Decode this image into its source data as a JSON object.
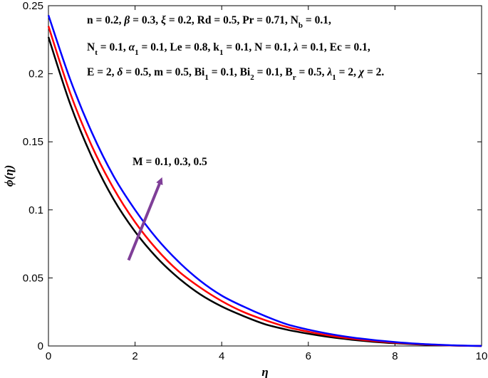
{
  "chart_data": {
    "type": "line",
    "xlabel": "η",
    "ylabel": "ϕ(η)",
    "xlim": [
      0,
      10
    ],
    "ylim": [
      0,
      0.25
    ],
    "x_ticks": [
      "0",
      "2",
      "4",
      "6",
      "8",
      "10"
    ],
    "y_ticks": [
      "0",
      "0.05",
      "0.1",
      "0.15",
      "0.2",
      "0.25"
    ],
    "grid": false,
    "legend": "none",
    "parameter_lines": [
      "n = 0.2, β = 0.3, ξ = 0.2, Rd = 0.5, Pr = 0.71, N_b = 0.1,",
      "N_t = 0.1, α_1 = 0.1, Le = 0.8, k_1 = 0.1, N = 0.1, λ = 0.1, Ec = 0.1,",
      "E = 2, δ = 0.5, m = 0.5, Bi_1 = 0.1, Bi_2 = 0.1, B_r = 0.5, λ_1 = 2, χ = 2."
    ],
    "annotation": {
      "text": "M = 0.1, 0.3, 0.5",
      "arrow_from": [
        1.85,
        0.063
      ],
      "arrow_to": [
        2.6,
        0.122
      ],
      "arrow_color": "#7f3f98"
    },
    "series": [
      {
        "color": "#000000",
        "x": [
          0,
          0.5,
          1,
          1.5,
          2,
          2.5,
          3,
          3.5,
          4,
          4.5,
          5,
          5.5,
          6,
          6.5,
          7,
          7.5,
          8,
          8.5,
          9,
          9.5,
          10
        ],
        "y": [
          0.227,
          0.178,
          0.139,
          0.108,
          0.084,
          0.065,
          0.05,
          0.038,
          0.029,
          0.022,
          0.016,
          0.012,
          0.009,
          0.0065,
          0.0046,
          0.0031,
          0.002,
          0.0012,
          0.0006,
          0.0002,
          0.0
        ]
      },
      {
        "color": "#ff0000",
        "x": [
          0,
          0.5,
          1,
          1.5,
          2,
          2.5,
          3,
          3.5,
          4,
          4.5,
          5,
          5.5,
          6,
          6.5,
          7,
          7.5,
          8,
          8.5,
          9,
          9.5,
          10
        ],
        "y": [
          0.235,
          0.186,
          0.147,
          0.116,
          0.091,
          0.071,
          0.055,
          0.043,
          0.033,
          0.025,
          0.019,
          0.014,
          0.0105,
          0.0076,
          0.0054,
          0.0037,
          0.0024,
          0.0014,
          0.0007,
          0.0002,
          0.0
        ]
      },
      {
        "color": "#0000ff",
        "x": [
          0,
          0.5,
          1,
          1.5,
          2,
          2.5,
          3,
          3.5,
          4,
          4.5,
          5,
          5.5,
          6,
          6.5,
          7,
          7.5,
          8,
          8.5,
          9,
          9.5,
          10
        ],
        "y": [
          0.243,
          0.196,
          0.157,
          0.125,
          0.1,
          0.079,
          0.062,
          0.048,
          0.037,
          0.029,
          0.022,
          0.016,
          0.012,
          0.0088,
          0.0063,
          0.0044,
          0.0029,
          0.0017,
          0.0009,
          0.0003,
          0.0
        ]
      }
    ]
  }
}
